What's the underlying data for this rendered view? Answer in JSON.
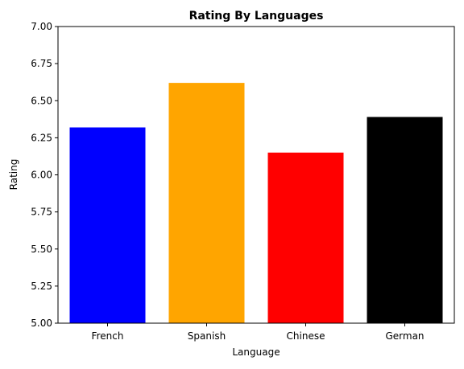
{
  "chart_data": {
    "type": "bar",
    "title": "Rating By Languages",
    "xlabel": "Language",
    "ylabel": "Rating",
    "categories": [
      "French",
      "Spanish",
      "Chinese",
      "German"
    ],
    "values": [
      6.32,
      6.62,
      6.15,
      6.39
    ],
    "colors": [
      "#0000ff",
      "#ffa500",
      "#ff0000",
      "#000000"
    ],
    "ylim": [
      5.0,
      7.0
    ],
    "yticks": [
      "5.00",
      "5.25",
      "5.50",
      "5.75",
      "6.00",
      "6.25",
      "6.50",
      "6.75",
      "7.00"
    ],
    "grid": false,
    "legend": "none"
  }
}
